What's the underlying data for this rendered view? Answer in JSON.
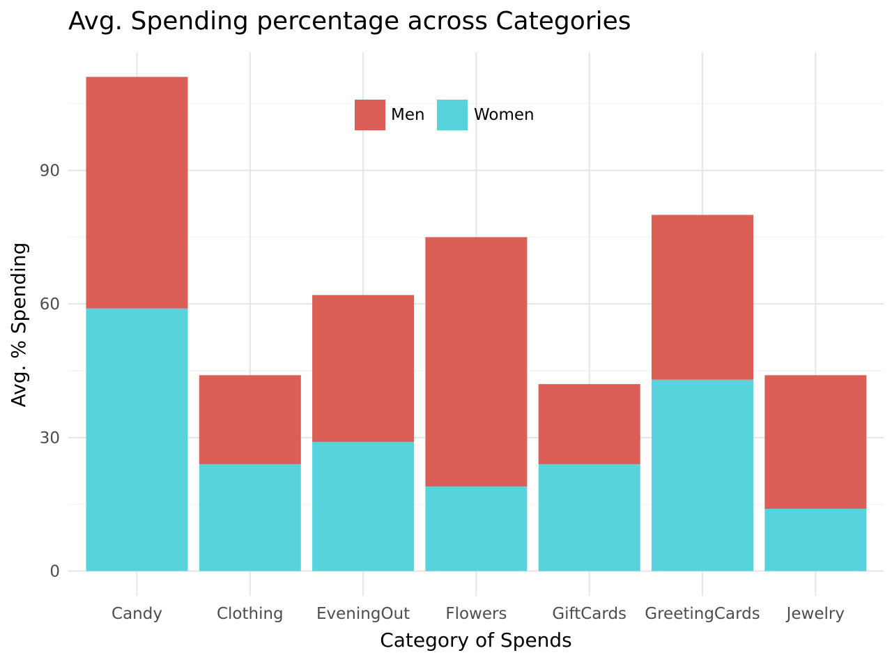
{
  "chart_data": {
    "type": "bar",
    "stacked": true,
    "title": "Avg. Spending percentage across Categories",
    "xlabel": "Category of Spends",
    "ylabel": "Avg. % Spending",
    "categories": [
      "Candy",
      "Clothing",
      "EveningOut",
      "Flowers",
      "GiftCards",
      "GreetingCards",
      "Jewelry"
    ],
    "series": [
      {
        "name": "Women",
        "color": "#58d3db",
        "values": [
          59,
          24,
          29,
          19,
          24,
          43,
          14
        ]
      },
      {
        "name": "Men",
        "color": "#db5f57",
        "values": [
          52,
          20,
          33,
          56,
          18,
          37,
          30
        ]
      }
    ],
    "ylim": [
      0,
      120
    ],
    "yticks": [
      0,
      30,
      60,
      90
    ],
    "ytick_labels": [
      "0",
      "30",
      "60",
      "90"
    ],
    "legend": {
      "position": "top-center",
      "entries": [
        "Men",
        "Women"
      ]
    },
    "grid": true
  }
}
